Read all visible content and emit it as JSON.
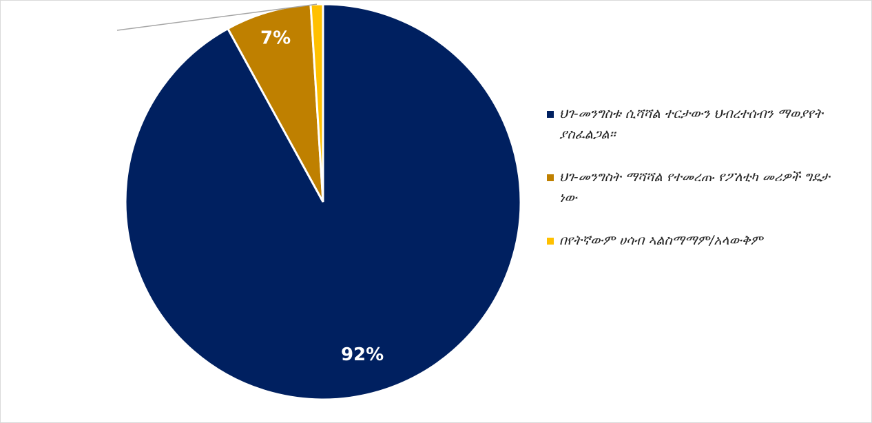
{
  "chart_data": {
    "type": "pie",
    "categories": [
      "ህገ-መንግስቱ ሲሻሻል ተርታውን ህብረተሰብን ማወያየት ያስፈልጋል።",
      "ህገ-መንግስት ማሻሻል የተመረጡ የፖለቲካ መሪዎች ግዴታ ነው",
      "በየትኛውም ሀሳብ ኣልስማማም/አላውቅም"
    ],
    "values": [
      92,
      7,
      1
    ],
    "value_labels": [
      "92%",
      "7%",
      null
    ],
    "colors": [
      "#002060",
      "#bf8000",
      "#ffc000"
    ],
    "legend": "right"
  }
}
